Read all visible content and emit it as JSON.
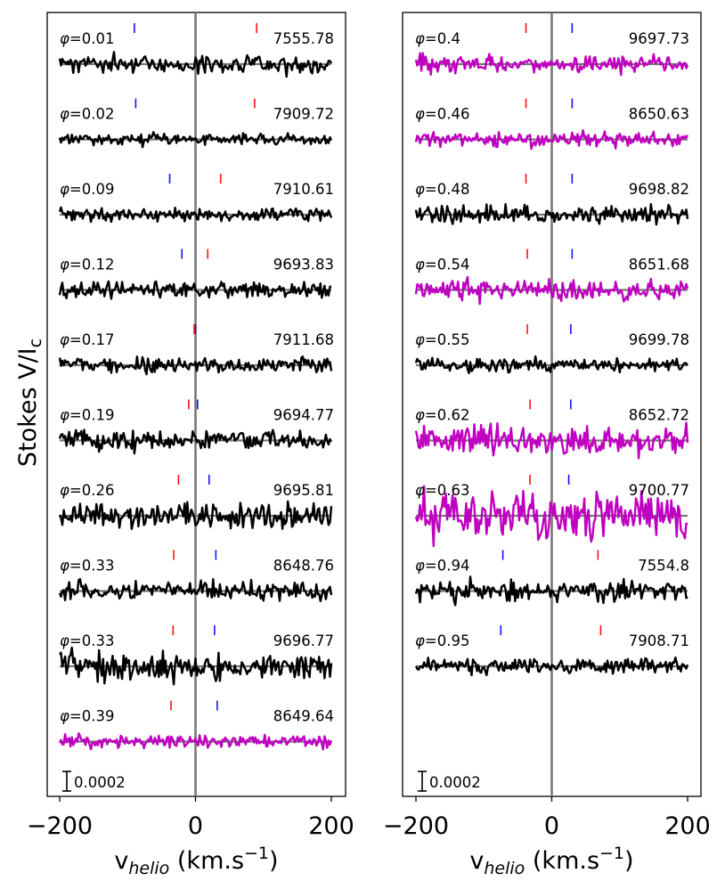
{
  "figure": {
    "ylabel": "Stokes V/I",
    "ylabel_sub": "c"
  },
  "chart_data": [
    {
      "type": "line",
      "panel": "left",
      "xlabel_main": "v",
      "xlabel_sub": "helio",
      "xlabel_unit": " (km.s",
      "xlabel_sup": "−1",
      "xlabel_close": ")",
      "xlim": [
        -205,
        205
      ],
      "xticks": [
        -200,
        0,
        200
      ],
      "xtick_labels": [
        "−200",
        "0",
        "200"
      ],
      "reference_line_x": 0,
      "scale_bar_label": "0.0002",
      "scale_bar_value": 0.0002,
      "series": [
        {
          "phase_label": "=0.01",
          "hjd_label": "7555.78",
          "color": "#000000",
          "blue_marker": -90,
          "red_marker": 90,
          "noise": 0.55,
          "seed": 11
        },
        {
          "phase_label": "=0.02",
          "hjd_label": "7909.72",
          "color": "#000000",
          "blue_marker": -88,
          "red_marker": 87,
          "noise": 0.35,
          "seed": 23
        },
        {
          "phase_label": "=0.09",
          "hjd_label": "7910.61",
          "color": "#000000",
          "blue_marker": -38,
          "red_marker": 37,
          "noise": 0.4,
          "seed": 37
        },
        {
          "phase_label": "=0.12",
          "hjd_label": "9693.83",
          "color": "#000000",
          "blue_marker": -20,
          "red_marker": 18,
          "noise": 0.5,
          "seed": 41
        },
        {
          "phase_label": "=0.17",
          "hjd_label": "7911.68",
          "color": "#000000",
          "blue_marker": 0,
          "red_marker": -2,
          "noise": 0.45,
          "seed": 53
        },
        {
          "phase_label": "=0.19",
          "hjd_label": "9694.77",
          "color": "#000000",
          "blue_marker": 3,
          "red_marker": -10,
          "noise": 0.6,
          "seed": 67
        },
        {
          "phase_label": "=0.26",
          "hjd_label": "9695.81",
          "color": "#000000",
          "blue_marker": 20,
          "red_marker": -25,
          "noise": 0.75,
          "seed": 71
        },
        {
          "phase_label": "=0.33",
          "hjd_label": "8648.76",
          "color": "#000000",
          "blue_marker": 30,
          "red_marker": -32,
          "noise": 0.55,
          "seed": 83
        },
        {
          "phase_label": "=0.33",
          "hjd_label": "9696.77",
          "color": "#000000",
          "blue_marker": 28,
          "red_marker": -33,
          "noise": 0.8,
          "seed": 97
        },
        {
          "phase_label": "=0.39",
          "hjd_label": "8649.64",
          "color": "#c000c0",
          "blue_marker": 32,
          "red_marker": -36,
          "noise": 0.4,
          "seed": 101
        }
      ]
    },
    {
      "type": "line",
      "panel": "right",
      "xlabel_main": "v",
      "xlabel_sub": "helio",
      "xlabel_unit": " (km.s",
      "xlabel_sup": "−1",
      "xlabel_close": ")",
      "xlim": [
        -205,
        205
      ],
      "xticks": [
        -200,
        0,
        200
      ],
      "xtick_labels": [
        "−200",
        "0",
        "200"
      ],
      "reference_line_x": 0,
      "scale_bar_label": "0.0002",
      "scale_bar_value": 0.0002,
      "series": [
        {
          "phase_label": "=0.4",
          "hjd_label": "9697.73",
          "color": "#c000c0",
          "blue_marker": 30,
          "red_marker": -38,
          "noise": 0.55,
          "seed": 113
        },
        {
          "phase_label": "=0.46",
          "hjd_label": "8650.63",
          "color": "#c000c0",
          "blue_marker": 30,
          "red_marker": -38,
          "noise": 0.45,
          "seed": 127
        },
        {
          "phase_label": "=0.48",
          "hjd_label": "9698.82",
          "color": "#000000",
          "blue_marker": 30,
          "red_marker": -38,
          "noise": 0.55,
          "seed": 131
        },
        {
          "phase_label": "=0.54",
          "hjd_label": "8651.68",
          "color": "#c000c0",
          "blue_marker": 30,
          "red_marker": -36,
          "noise": 0.6,
          "seed": 149
        },
        {
          "phase_label": "=0.55",
          "hjd_label": "9699.78",
          "color": "#000000",
          "blue_marker": 28,
          "red_marker": -36,
          "noise": 0.4,
          "seed": 157
        },
        {
          "phase_label": "=0.62",
          "hjd_label": "8652.72",
          "color": "#c000c0",
          "blue_marker": 28,
          "red_marker": -32,
          "noise": 0.85,
          "seed": 163
        },
        {
          "phase_label": "=0.63",
          "hjd_label": "9700.77",
          "color": "#c000c0",
          "blue_marker": 25,
          "red_marker": -32,
          "noise": 1.4,
          "seed": 173
        },
        {
          "phase_label": "=0.94",
          "hjd_label": "7554.8",
          "color": "#000000",
          "blue_marker": -72,
          "red_marker": 68,
          "noise": 0.65,
          "seed": 181
        },
        {
          "phase_label": "=0.95",
          "hjd_label": "7908.71",
          "color": "#000000",
          "blue_marker": -75,
          "red_marker": 72,
          "noise": 0.45,
          "seed": 191
        }
      ]
    }
  ]
}
